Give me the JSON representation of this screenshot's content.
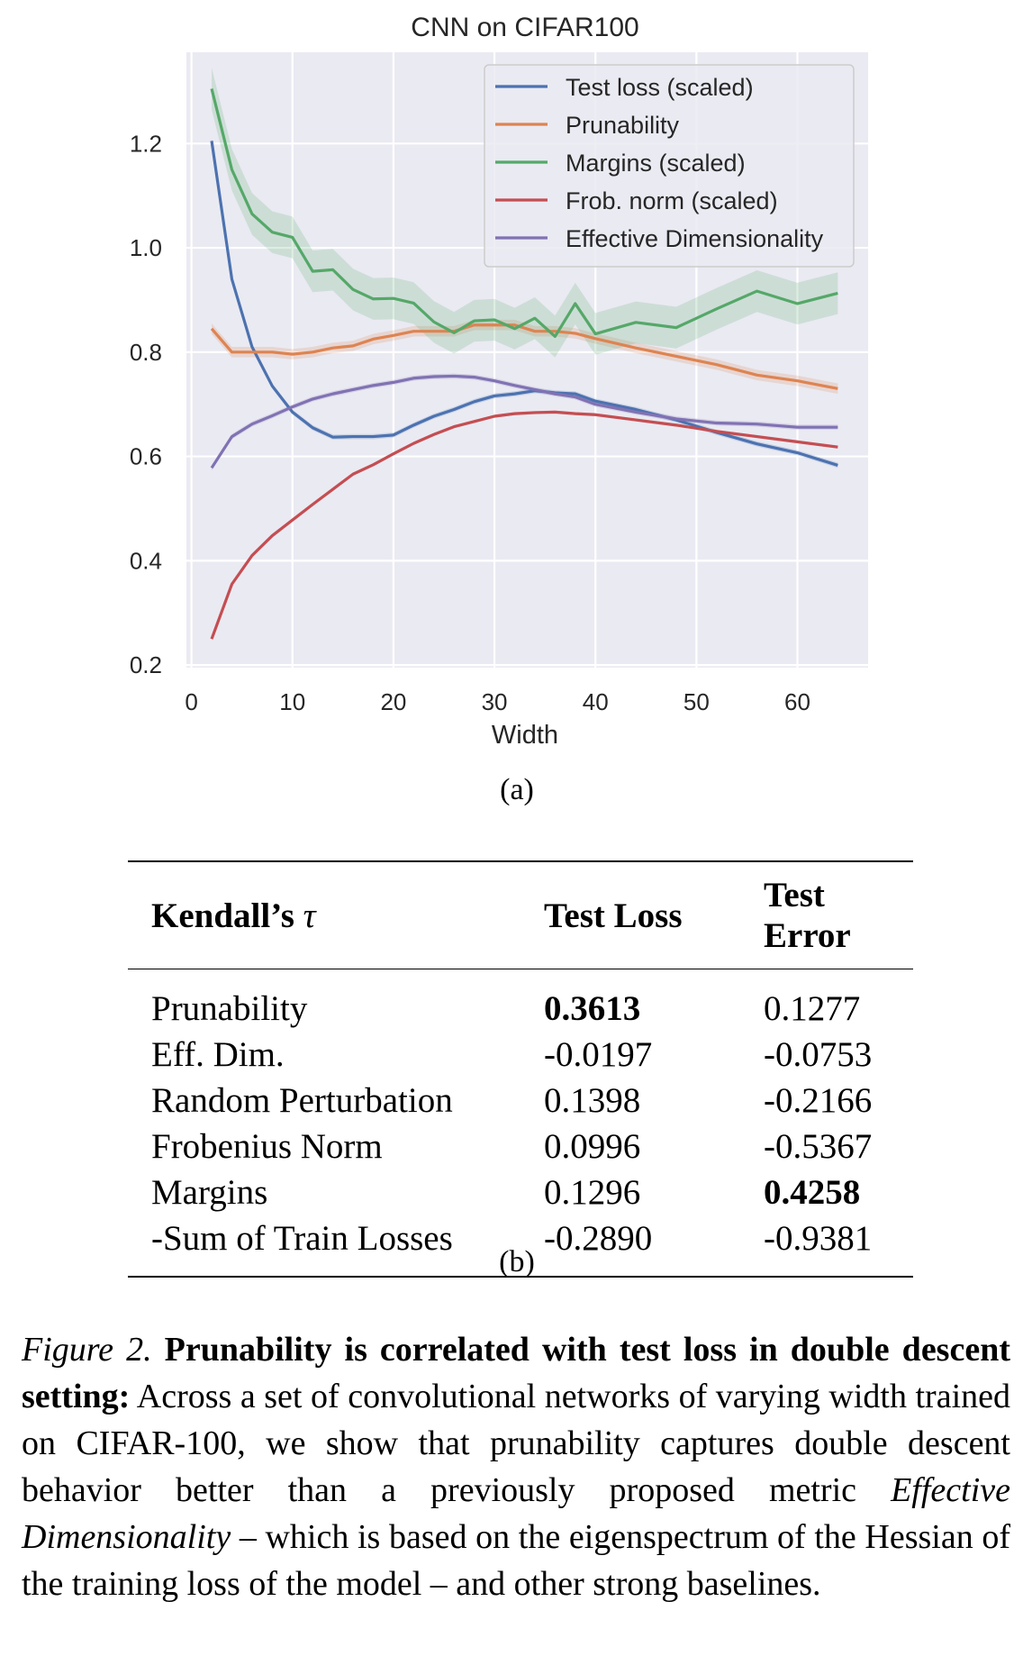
{
  "figure_a": {
    "label": "(a)",
    "chart_data": {
      "type": "line",
      "title": "CNN on CIFAR100",
      "xlabel": "Width",
      "ylabel": "",
      "xlim": [
        -0.5,
        67
      ],
      "ylim": [
        0.195,
        1.375
      ],
      "xticks": [
        "0",
        "10",
        "20",
        "30",
        "40",
        "50",
        "60"
      ],
      "yticks": [
        "0.2",
        "0.4",
        "0.6",
        "0.8",
        "1.0",
        "1.2"
      ],
      "grid": true,
      "legend_position": "top-right",
      "series": [
        {
          "name": "Test loss (scaled)",
          "color": "#4c72b0",
          "x": [
            2,
            4,
            6,
            8,
            10,
            12,
            14,
            16,
            18,
            20,
            22,
            24,
            26,
            28,
            30,
            32,
            34,
            36,
            38,
            40,
            44,
            48,
            52,
            56,
            60,
            64
          ],
          "y": [
            1.205,
            0.94,
            0.81,
            0.735,
            0.685,
            0.655,
            0.637,
            0.638,
            0.638,
            0.641,
            0.66,
            0.677,
            0.69,
            0.705,
            0.716,
            0.72,
            0.726,
            0.722,
            0.72,
            0.706,
            0.69,
            0.67,
            0.646,
            0.624,
            0.607,
            0.583
          ],
          "band": 0.005
        },
        {
          "name": "Prunability",
          "color": "#dd8452",
          "x": [
            2,
            4,
            6,
            8,
            10,
            12,
            14,
            16,
            18,
            20,
            22,
            24,
            26,
            28,
            30,
            32,
            34,
            36,
            38,
            40,
            44,
            48,
            52,
            56,
            60,
            64
          ],
          "y": [
            0.845,
            0.8,
            0.8,
            0.8,
            0.796,
            0.8,
            0.808,
            0.812,
            0.825,
            0.832,
            0.84,
            0.84,
            0.84,
            0.852,
            0.852,
            0.852,
            0.84,
            0.84,
            0.836,
            0.826,
            0.808,
            0.792,
            0.776,
            0.756,
            0.745,
            0.73
          ],
          "band": 0.01
        },
        {
          "name": "Margins (scaled)",
          "color": "#55a868",
          "x": [
            2,
            4,
            6,
            8,
            10,
            12,
            14,
            16,
            18,
            20,
            22,
            24,
            26,
            28,
            30,
            32,
            34,
            36,
            38,
            40,
            44,
            48,
            52,
            56,
            60,
            64
          ],
          "y": [
            1.305,
            1.15,
            1.065,
            1.03,
            1.02,
            0.955,
            0.958,
            0.92,
            0.902,
            0.903,
            0.894,
            0.858,
            0.837,
            0.86,
            0.862,
            0.845,
            0.865,
            0.83,
            0.893,
            0.835,
            0.857,
            0.847,
            0.883,
            0.917,
            0.893,
            0.913
          ],
          "band": 0.04
        },
        {
          "name": "Frob. norm (scaled)",
          "color": "#c44e52",
          "x": [
            2,
            4,
            6,
            8,
            10,
            12,
            14,
            16,
            18,
            20,
            22,
            24,
            26,
            28,
            30,
            32,
            34,
            36,
            38,
            40,
            44,
            48,
            52,
            56,
            60,
            64
          ],
          "y": [
            0.25,
            0.355,
            0.41,
            0.448,
            0.478,
            0.508,
            0.537,
            0.566,
            0.584,
            0.605,
            0.625,
            0.642,
            0.657,
            0.667,
            0.677,
            0.682,
            0.684,
            0.685,
            0.682,
            0.68,
            0.67,
            0.66,
            0.648,
            0.638,
            0.628,
            0.618
          ],
          "band": 0.003
        },
        {
          "name": "Effective Dimensionality",
          "color": "#8172b3",
          "x": [
            2,
            4,
            6,
            8,
            10,
            12,
            14,
            16,
            18,
            20,
            22,
            24,
            26,
            28,
            30,
            32,
            34,
            36,
            38,
            40,
            44,
            48,
            52,
            56,
            60,
            64
          ],
          "y": [
            0.578,
            0.638,
            0.662,
            0.678,
            0.695,
            0.71,
            0.72,
            0.728,
            0.736,
            0.742,
            0.75,
            0.753,
            0.754,
            0.752,
            0.745,
            0.736,
            0.728,
            0.72,
            0.714,
            0.7,
            0.685,
            0.672,
            0.664,
            0.662,
            0.656,
            0.656
          ],
          "band": 0.005
        }
      ]
    }
  },
  "figure_b": {
    "label": "(b)",
    "table": {
      "header_metric": "Kendall’s ",
      "header_tau": "τ",
      "col1": "Test Loss",
      "col2": "Test Error",
      "rows": [
        {
          "name": "Prunability",
          "loss": "0.3613",
          "error": "0.1277",
          "bold_loss": true,
          "bold_error": false
        },
        {
          "name": "Eff. Dim.",
          "loss": "-0.0197",
          "error": "-0.0753",
          "bold_loss": false,
          "bold_error": false
        },
        {
          "name": "Random Perturbation",
          "loss": "0.1398",
          "error": "-0.2166",
          "bold_loss": false,
          "bold_error": false
        },
        {
          "name": "Frobenius Norm",
          "loss": "0.0996",
          "error": "-0.5367",
          "bold_loss": false,
          "bold_error": false
        },
        {
          "name": "Margins",
          "loss": "0.1296",
          "error": "0.4258",
          "bold_loss": false,
          "bold_error": true
        },
        {
          "name": "-Sum of Train Losses",
          "loss": "-0.2890",
          "error": "-0.9381",
          "bold_loss": false,
          "bold_error": false
        }
      ]
    }
  },
  "caption": {
    "fig_label": "Figure 2.",
    "bold_title": "Prunability is correlated with test loss in double descent setting:",
    "text_1": "Across a set of convolutional networks of varying width trained on CIFAR-100, we show that prunability captures double descent behavior better than a previously proposed metric",
    "italic_term": "Effective Dimensionality",
    "text_2": "– which is based on the eigenspectrum of the Hessian of the training loss of the model – and other strong baselines."
  }
}
